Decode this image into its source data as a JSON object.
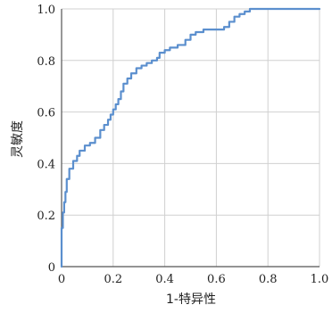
{
  "chart_data": {
    "type": "line",
    "title": "",
    "xlabel": "1-特异性",
    "ylabel": "灵敏度",
    "xlim": [
      0,
      1
    ],
    "ylim": [
      0,
      1
    ],
    "grid": true,
    "legend": "none",
    "x_ticks": [
      {
        "value": 0,
        "label": "0"
      },
      {
        "value": 0.2,
        "label": "0.2"
      },
      {
        "value": 0.4,
        "label": "0.4"
      },
      {
        "value": 0.6,
        "label": "0.6"
      },
      {
        "value": 0.8,
        "label": "0.8"
      },
      {
        "value": 1.0,
        "label": "1.0"
      }
    ],
    "y_ticks": [
      {
        "value": 0,
        "label": "0"
      },
      {
        "value": 0.2,
        "label": "0.2"
      },
      {
        "value": 0.4,
        "label": "0.4"
      },
      {
        "value": 0.6,
        "label": "0.6"
      },
      {
        "value": 0.8,
        "label": "0.8"
      },
      {
        "value": 1.0,
        "label": "1.0"
      }
    ],
    "colors": {
      "line": "#5b8fce",
      "grid": "#d0d0d0",
      "axis": "#555555"
    },
    "series": [
      {
        "x": [
          0.0,
          0.0,
          0.005,
          0.005,
          0.01,
          0.01,
          0.015,
          0.015,
          0.02,
          0.02,
          0.03,
          0.03,
          0.045,
          0.045,
          0.06,
          0.06,
          0.07,
          0.07,
          0.09,
          0.09,
          0.11,
          0.11,
          0.13,
          0.13,
          0.15,
          0.15,
          0.165,
          0.165,
          0.18,
          0.18,
          0.19,
          0.19,
          0.2,
          0.2,
          0.21,
          0.21,
          0.22,
          0.22,
          0.23,
          0.23,
          0.24,
          0.24,
          0.255,
          0.255,
          0.27,
          0.27,
          0.29,
          0.29,
          0.31,
          0.31,
          0.33,
          0.33,
          0.35,
          0.35,
          0.37,
          0.37,
          0.38,
          0.38,
          0.4,
          0.4,
          0.42,
          0.42,
          0.45,
          0.45,
          0.48,
          0.48,
          0.5,
          0.5,
          0.52,
          0.52,
          0.55,
          0.55,
          0.6,
          0.6,
          0.63,
          0.63,
          0.65,
          0.65,
          0.67,
          0.67,
          0.69,
          0.69,
          0.71,
          0.71,
          0.73,
          0.73,
          0.8,
          0.8,
          0.9,
          1.0
        ],
        "y": [
          0.0,
          0.15,
          0.15,
          0.21,
          0.21,
          0.25,
          0.25,
          0.29,
          0.29,
          0.34,
          0.34,
          0.38,
          0.38,
          0.41,
          0.41,
          0.43,
          0.43,
          0.45,
          0.45,
          0.47,
          0.47,
          0.48,
          0.48,
          0.5,
          0.5,
          0.53,
          0.53,
          0.55,
          0.55,
          0.57,
          0.57,
          0.59,
          0.59,
          0.61,
          0.61,
          0.63,
          0.63,
          0.65,
          0.65,
          0.68,
          0.68,
          0.71,
          0.71,
          0.73,
          0.73,
          0.75,
          0.75,
          0.77,
          0.77,
          0.78,
          0.78,
          0.79,
          0.79,
          0.8,
          0.8,
          0.81,
          0.81,
          0.83,
          0.83,
          0.84,
          0.84,
          0.85,
          0.85,
          0.86,
          0.86,
          0.88,
          0.88,
          0.9,
          0.9,
          0.91,
          0.91,
          0.92,
          0.92,
          0.92,
          0.92,
          0.93,
          0.93,
          0.95,
          0.95,
          0.97,
          0.97,
          0.98,
          0.98,
          0.99,
          0.99,
          1.0,
          1.0,
          1.0,
          1.0,
          1.0
        ]
      }
    ]
  }
}
